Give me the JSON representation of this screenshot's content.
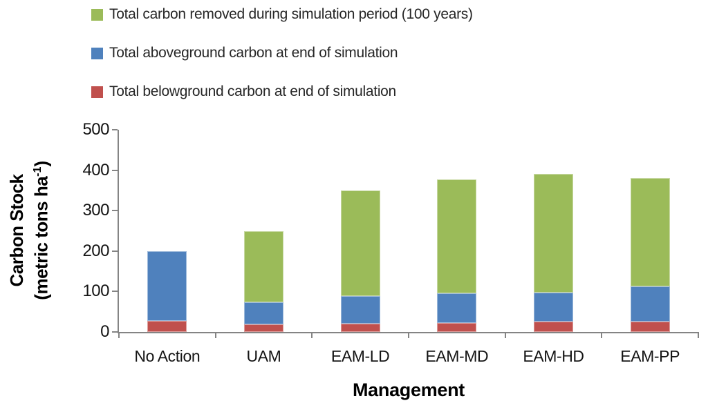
{
  "chart_data": {
    "type": "bar",
    "stacked": true,
    "categories": [
      "No Action",
      "UAM",
      "EAM-LD",
      "EAM-MD",
      "EAM-HD",
      "EAM-PP"
    ],
    "series": [
      {
        "key": "belowground",
        "name": "Total belowground carbon at end of simulation",
        "color": "#C0504D",
        "values": [
          28,
          18,
          20,
          23,
          25,
          25
        ]
      },
      {
        "key": "aboveground",
        "name": "Total aboveground carbon at end of simulation",
        "color": "#4F81BD",
        "values": [
          172,
          55,
          68,
          72,
          73,
          88
        ]
      },
      {
        "key": "removed",
        "name": "Total carbon removed during simulation period (100 years)",
        "color": "#9BBB59",
        "values": [
          0,
          177,
          262,
          282,
          293,
          267
        ]
      }
    ],
    "stack_totals": [
      200,
      250,
      350,
      377,
      391,
      380
    ],
    "xlabel": "Management",
    "ylabel": {
      "line1": "Carbon Stock",
      "line2_pre": "(metric tons ha",
      "sup": "-1",
      "post": ")"
    },
    "ylim": [
      0,
      500
    ],
    "yticks": [
      0,
      100,
      200,
      300,
      400,
      500
    ],
    "grid": false,
    "legend_position": "top-left",
    "axis_color": "#848484",
    "tick_text_color": "#141414",
    "legend_text_color": "#262626"
  }
}
